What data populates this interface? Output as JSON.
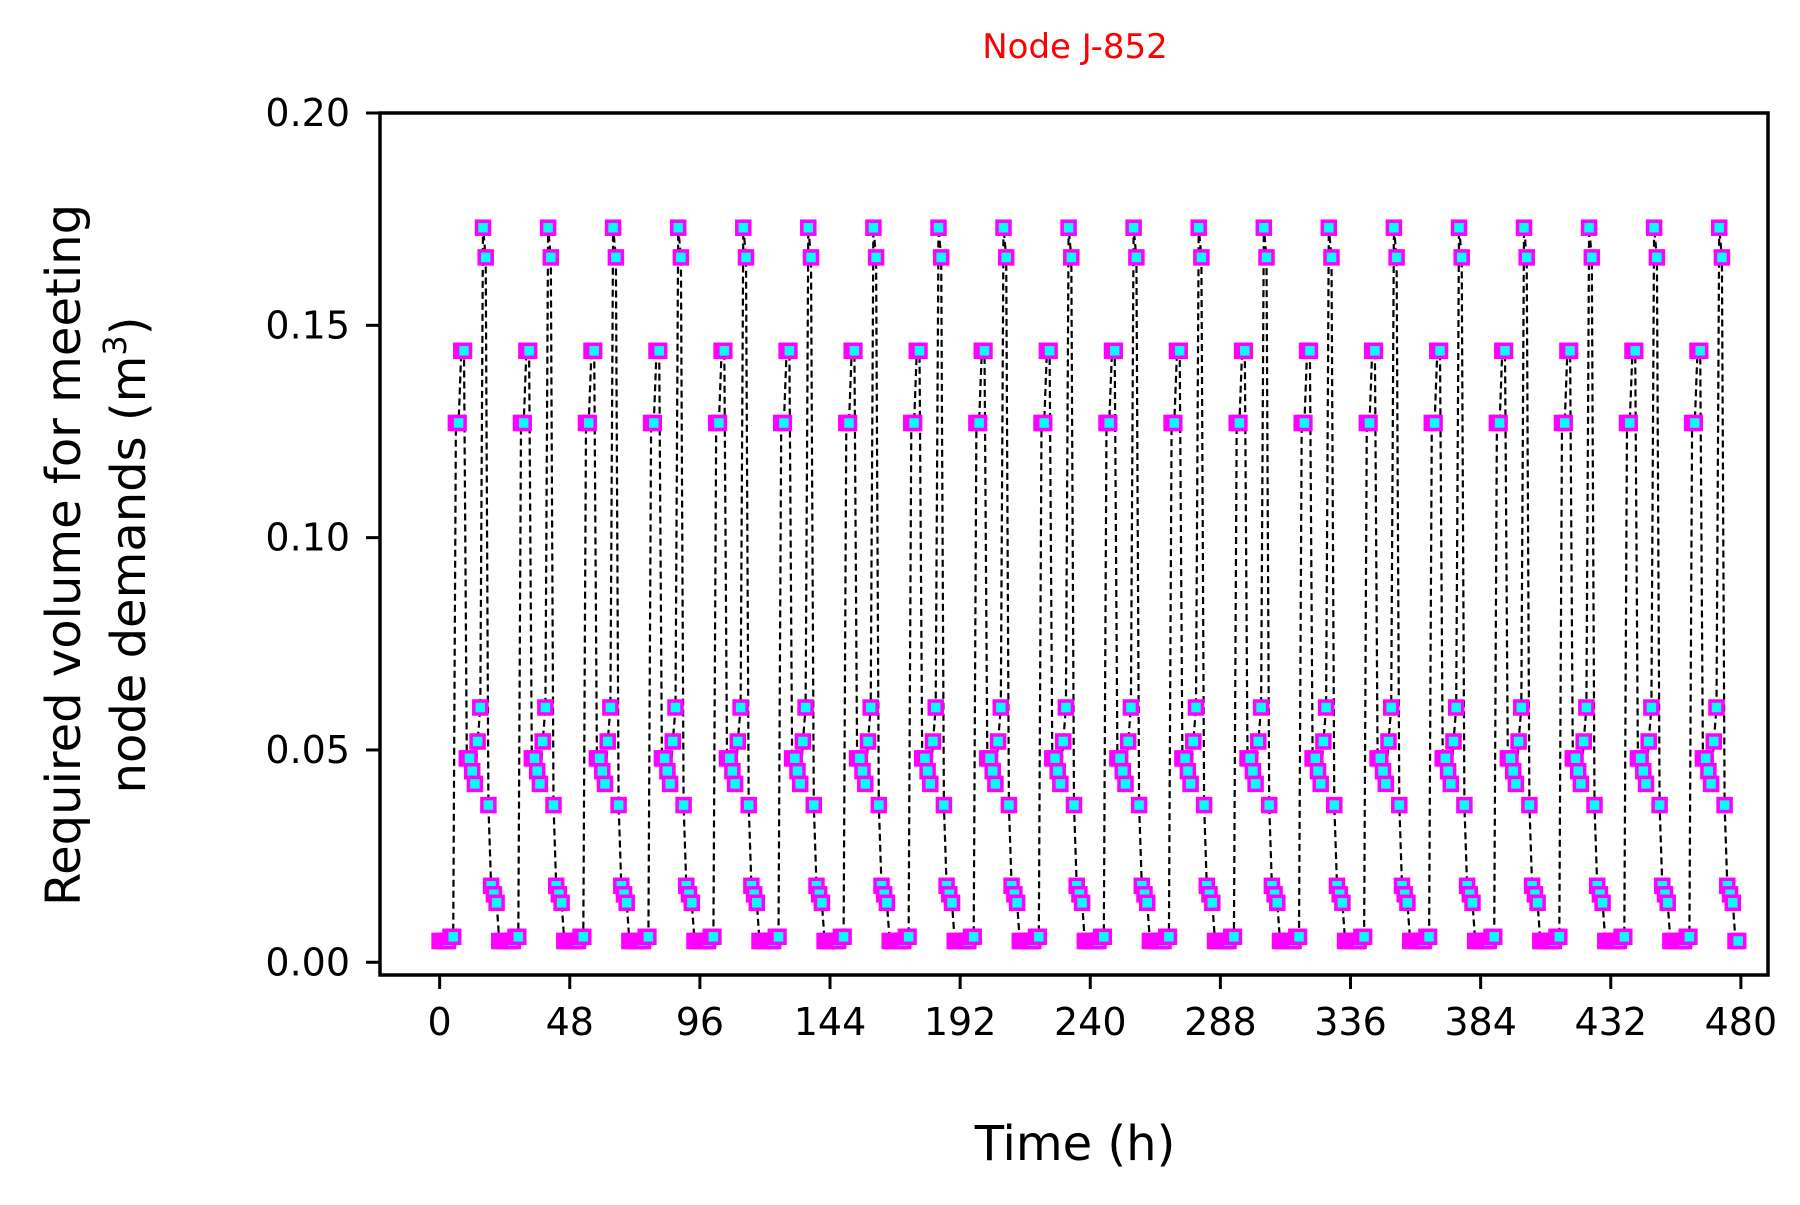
{
  "chart_data": {
    "type": "line",
    "title": "Node J-852",
    "xlabel": "Time (h)",
    "ylabel_line1": "Required volume for meeting",
    "ylabel_line2_prefix": "node demands (m",
    "ylabel_superscript": "3",
    "ylabel_line2_suffix": ")",
    "xlim": [
      -22,
      490
    ],
    "ylim": [
      -0.003,
      0.2
    ],
    "xticks": [
      0,
      48,
      96,
      144,
      192,
      240,
      288,
      336,
      384,
      432,
      480
    ],
    "yticks": [
      0.0,
      0.05,
      0.1,
      0.15,
      0.2
    ],
    "ytick_labels": [
      "0.00",
      "0.05",
      "0.10",
      "0.15",
      "0.20"
    ],
    "grid": false,
    "series": [
      {
        "period_hours": 24,
        "num_periods": 20,
        "daily_pattern": [
          0.005,
          0.005,
          0.005,
          0.005,
          0.006,
          0.006,
          0.127,
          0.127,
          0.144,
          0.144,
          0.048,
          0.048,
          0.045,
          0.042,
          0.052,
          0.06,
          0.173,
          0.166,
          0.037,
          0.018,
          0.016,
          0.014,
          0.005,
          0.005
        ],
        "line_style": "dashed",
        "marker": "square"
      }
    ],
    "colors": {
      "line": "#000000",
      "marker_edge": "#ff00ff",
      "marker_fill": "#00ffff",
      "title": "#ff0000"
    }
  }
}
